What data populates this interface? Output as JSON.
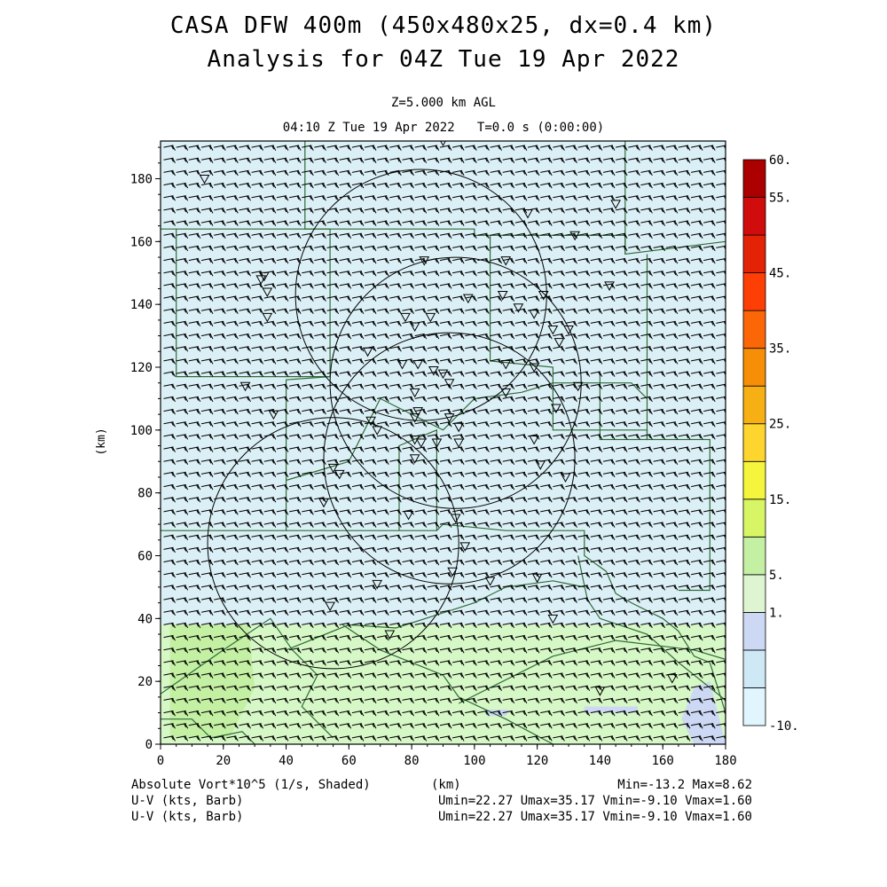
{
  "title": {
    "line1": "CASA DFW 400m (450x480x25, dx=0.4 km)",
    "line2": "Analysis for 04Z Tue 19 Apr 2022"
  },
  "subtitle": {
    "level": "Z=5.000 km AGL",
    "time": "04:10 Z Tue 19 Apr 2022   T=0.0 s (0:00:00)"
  },
  "footer": {
    "field1": "Absolute Vort*10^5 (1/s, Shaded)",
    "field2": "U-V (kts, Barb)",
    "field3": "U-V (kts, Barb)",
    "xunit": "(km)",
    "minmax1": "Min=-13.2 Max=8.62",
    "minmax2": "Umin=22.27 Umax=35.17 Vmin=-9.10 Vmax=1.60",
    "minmax3": "Umin=22.27 Umax=35.17 Vmin=-9.10 Vmax=1.60"
  },
  "chart_data": {
    "type": "heatmap",
    "title": "CASA DFW 400m (450x480x25, dx=0.4 km) Analysis for 04Z Tue 19 Apr 2022",
    "xlabel": "(km)",
    "ylabel": "(km)",
    "xlim": [
      0,
      180
    ],
    "ylim": [
      0,
      192
    ],
    "x_ticks": [
      "0",
      "20",
      "40",
      "60",
      "80",
      "100",
      "120",
      "140",
      "160",
      "180"
    ],
    "y_ticks": [
      "0",
      "20",
      "40",
      "60",
      "80",
      "100",
      "120",
      "140",
      "160",
      "180"
    ],
    "shaded_field": "Absolute Vort*10^5 (1/s)",
    "colorbar": {
      "labels": [
        "-10.",
        "1.",
        "5.",
        "15.",
        "25.",
        "35.",
        "45.",
        "55.",
        "60."
      ],
      "colors": [
        "#e0f5fd",
        "#cfe8f5",
        "#ccd8f4",
        "#dff5d2",
        "#c4f0a4",
        "#d7f564",
        "#f5f53d",
        "#fed52f",
        "#f7b013",
        "#f68e07",
        "#fb6606",
        "#fd3f06",
        "#e42306",
        "#d00c0c",
        "#ac0000"
      ]
    },
    "regions": [
      {
        "y_range": [
          38,
          192
        ],
        "value_class": "-10. to 1.",
        "color": "#dbf0f6"
      },
      {
        "y_range": [
          0,
          38
        ],
        "value_class": "1. to 5.",
        "color": "#d6f7c6"
      }
    ],
    "wind_field": {
      "label": "U-V (kts, Barb)",
      "umin": 22.27,
      "umax": 35.17,
      "vmin": -9.1,
      "vmax": 1.6
    },
    "range_rings": [
      {
        "center": [
          83,
          143
        ],
        "radius_km": 40
      },
      {
        "center": [
          94,
          115
        ],
        "radius_km": 40
      },
      {
        "center": [
          92,
          91
        ],
        "radius_km": 40
      },
      {
        "center": [
          55,
          64
        ],
        "radius_km": 40
      }
    ],
    "min": -13.2,
    "max": 8.62
  },
  "colors": {
    "border": "#2f6b37",
    "ring": "#000000",
    "barb": "#000000"
  }
}
